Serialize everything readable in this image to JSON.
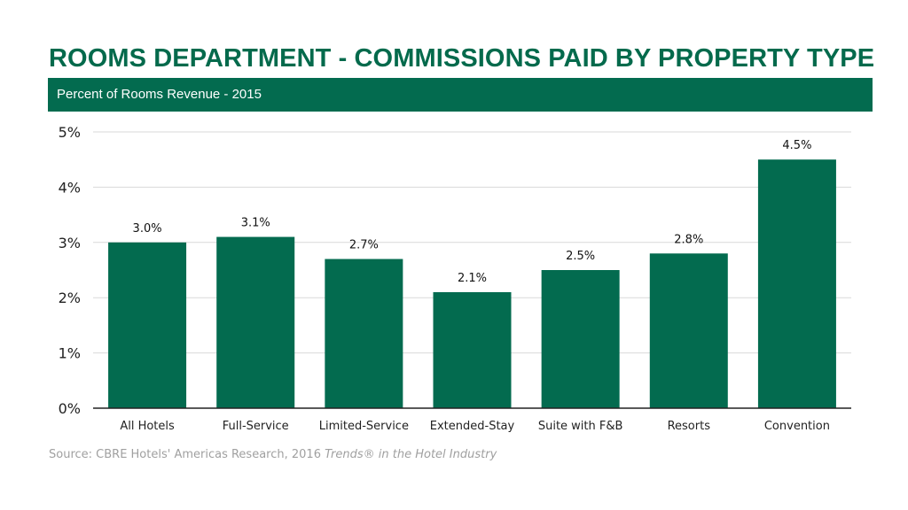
{
  "chart_data": {
    "type": "bar",
    "title": "ROOMS DEPARTMENT - COMMISSIONS PAID BY PROPERTY TYPE",
    "subtitle": "Percent of Rooms Revenue - 2015",
    "categories": [
      "All Hotels",
      "Full-Service",
      "Limited-Service",
      "Extended-Stay",
      "Suite with F&B",
      "Resorts",
      "Convention"
    ],
    "values": [
      3.0,
      3.1,
      2.7,
      2.1,
      2.5,
      2.8,
      4.5
    ],
    "data_labels": [
      "3.0%",
      "3.1%",
      "2.7%",
      "2.1%",
      "2.5%",
      "2.8%",
      "4.5%"
    ],
    "ylim": [
      0,
      5
    ],
    "yticks": [
      "0%",
      "1%",
      "2%",
      "3%",
      "4%",
      "5%"
    ],
    "xlabel": "",
    "ylabel": "",
    "grid": true,
    "bar_color": "#036B4F"
  },
  "source": {
    "prefix": "Source: CBRE Hotels' Americas Research, 2016 ",
    "italic": "Trends® in the Hotel Industry"
  }
}
